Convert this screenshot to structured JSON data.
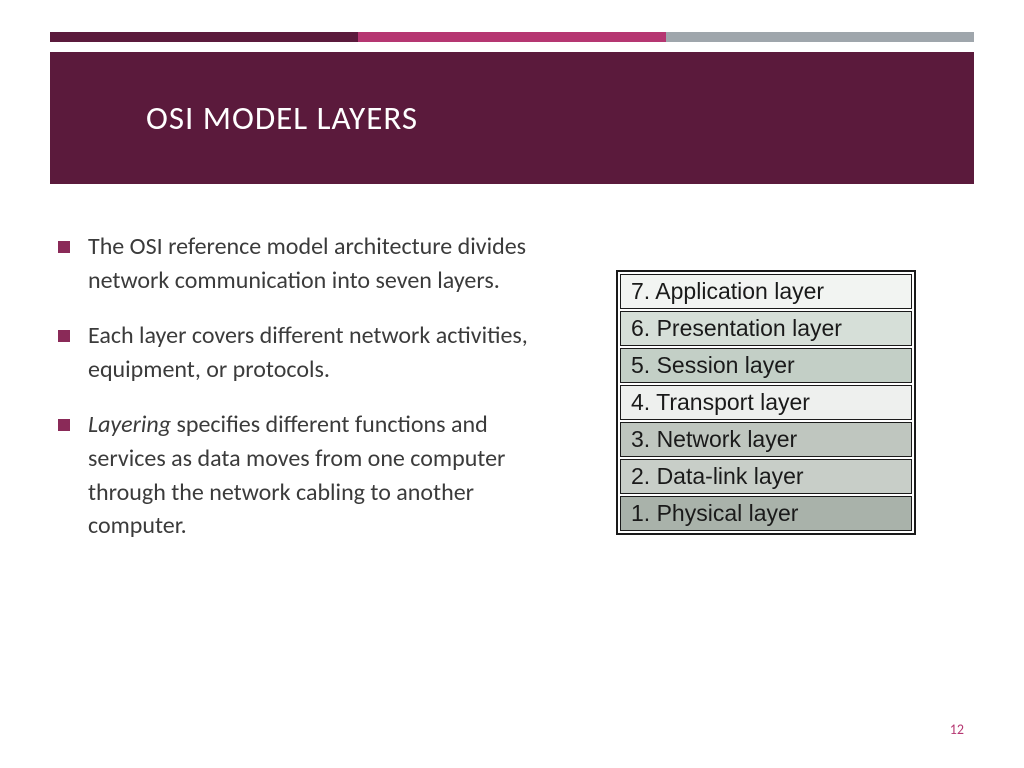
{
  "colors": {
    "header_band": "#5b1a3c",
    "stripe1": "#5b1a3c",
    "stripe2": "#b53671",
    "stripe3": "#9fa6ac",
    "bullet_marker": "#8a2a58",
    "page_num": "#b53671",
    "body_text": "#3b3b3b",
    "table_border": "#1a1a1a"
  },
  "top_stripe": {
    "segments": [
      {
        "color_key": "stripe1",
        "flex": 1.0
      },
      {
        "color_key": "stripe2",
        "flex": 1.0
      },
      {
        "color_key": "stripe3",
        "flex": 1.0
      }
    ]
  },
  "header": {
    "title": "OSI MODEL LAYERS"
  },
  "bullets": [
    {
      "text": "The OSI reference model architecture divides network communication into seven layers."
    },
    {
      "text": "Each layer covers different network activities, equipment, or protocols."
    },
    {
      "italic_lead": "Layering",
      "text_rest": " specifies different functions and services as data moves from one computer through the network cabling to another computer."
    }
  ],
  "osi_table": {
    "row_font_size": 23,
    "rows": [
      {
        "label": "7. Application layer",
        "bg": "#f2f4f2"
      },
      {
        "label": "6. Presentation layer",
        "bg": "#d6dfd8"
      },
      {
        "label": "5. Session layer",
        "bg": "#c3cfc6"
      },
      {
        "label": "4. Transport layer",
        "bg": "#eef0ee"
      },
      {
        "label": "3. Network layer",
        "bg": "#bfc6bf"
      },
      {
        "label": "2. Data-link layer",
        "bg": "#c8cec8"
      },
      {
        "label": "1. Physical layer",
        "bg": "#a9b2aa"
      }
    ]
  },
  "page_number": "12"
}
